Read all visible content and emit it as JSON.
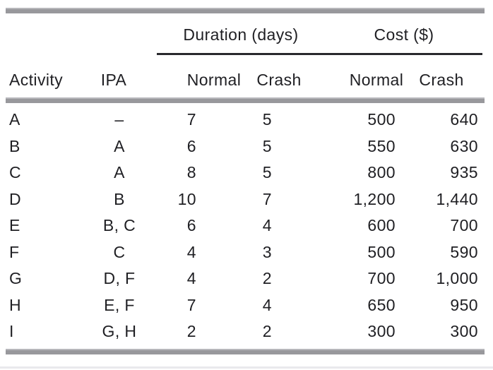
{
  "table": {
    "group_headers": [
      {
        "label": "Duration (days)"
      },
      {
        "label": "Cost ($)"
      }
    ],
    "column_headers": {
      "activity": "Activity",
      "ipa": "IPA",
      "duration_normal": "Normal",
      "duration_crash": "Crash",
      "cost_normal": "Normal",
      "cost_crash": "Crash"
    },
    "rows": [
      {
        "activity": "A",
        "ipa": "–",
        "dur_normal": "7",
        "dur_crash": "5",
        "cost_normal": "500",
        "cost_crash": "640"
      },
      {
        "activity": "B",
        "ipa": "A",
        "dur_normal": "6",
        "dur_crash": "5",
        "cost_normal": "550",
        "cost_crash": "630"
      },
      {
        "activity": "C",
        "ipa": "A",
        "dur_normal": "8",
        "dur_crash": "5",
        "cost_normal": "800",
        "cost_crash": "935"
      },
      {
        "activity": "D",
        "ipa": "B",
        "dur_normal": "10",
        "dur_crash": "7",
        "cost_normal": "1,200",
        "cost_crash": "1,440"
      },
      {
        "activity": "E",
        "ipa": "B, C",
        "dur_normal": "6",
        "dur_crash": "4",
        "cost_normal": "600",
        "cost_crash": "700"
      },
      {
        "activity": "F",
        "ipa": "C",
        "dur_normal": "4",
        "dur_crash": "3",
        "cost_normal": "500",
        "cost_crash": "590"
      },
      {
        "activity": "G",
        "ipa": "D, F",
        "dur_normal": "4",
        "dur_crash": "2",
        "cost_normal": "700",
        "cost_crash": "1,000"
      },
      {
        "activity": "H",
        "ipa": "E, F",
        "dur_normal": "7",
        "dur_crash": "4",
        "cost_normal": "650",
        "cost_crash": "950"
      },
      {
        "activity": "I",
        "ipa": "G, H",
        "dur_normal": "2",
        "dur_crash": "2",
        "cost_normal": "300",
        "cost_crash": "300"
      }
    ]
  },
  "colors": {
    "text": "#1f1f23",
    "rule_gray": "#98989c",
    "rule_black": "#29292d",
    "faint_line": "#e9e9ed",
    "background": "#ffffff"
  }
}
